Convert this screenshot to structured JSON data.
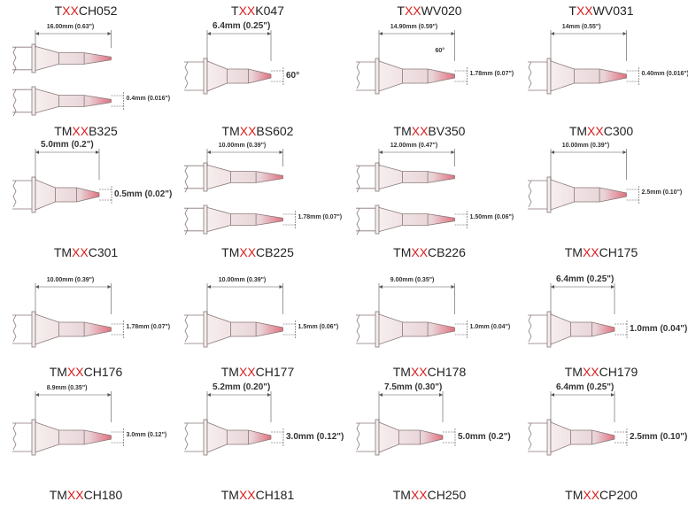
{
  "accent_color": "#d81e1e",
  "tip_color": "#e0707f",
  "tips": [
    {
      "prefix": "T",
      "xx": "XX",
      "suffix": "CH052",
      "length": "16.00mm (0.63\")",
      "width": "0.4mm (0.016\")"
    },
    {
      "prefix": "T",
      "xx": "XX",
      "suffix": "K047",
      "length": "6.4mm (0.25\")",
      "width": "60°"
    },
    {
      "prefix": "T",
      "xx": "XX",
      "suffix": "WV020",
      "length": "14.90mm (0.59\")",
      "angle": "60°",
      "width": "1.78mm (0.07\")"
    },
    {
      "prefix": "T",
      "xx": "XX",
      "suffix": "WV031",
      "length": "14mm (0.55\")",
      "width": "0.40mm (0.016\")"
    },
    {
      "prefix": "TM",
      "xx": "XX",
      "suffix": "B325",
      "length": "5.0mm (0.2\")",
      "width": "0.5mm (0.02\")"
    },
    {
      "prefix": "TM",
      "xx": "XX",
      "suffix": "BS602",
      "length": "10.00mm (0.39\")",
      "width": "1.78mm (0.07\")"
    },
    {
      "prefix": "TM",
      "xx": "XX",
      "suffix": "BV350",
      "length": "12.00mm (0.47\")",
      "width": "1.50mm (0.06\")"
    },
    {
      "prefix": "TM",
      "xx": "XX",
      "suffix": "C300",
      "length": "10.00mm (0.39\")",
      "width": "2.5mm (0.10\")"
    },
    {
      "prefix": "TM",
      "xx": "XX",
      "suffix": "C301",
      "length": "10.00mm (0.39\")",
      "width": "1.78mm (0.07\")"
    },
    {
      "prefix": "TM",
      "xx": "XX",
      "suffix": "CB225",
      "length": "10.00mm (0.39\")",
      "width": "1.5mm (0.06\")"
    },
    {
      "prefix": "TM",
      "xx": "XX",
      "suffix": "CB226",
      "length": "9.00mm (0.35\")",
      "width": "1.0mm (0.04\")"
    },
    {
      "prefix": "TM",
      "xx": "XX",
      "suffix": "CH175",
      "length": "6.4mm (0.25\")",
      "width": "1.0mm (0.04\")"
    },
    {
      "prefix": "TM",
      "xx": "XX",
      "suffix": "CH176",
      "length": "8.9mm (0.35\")",
      "width": "3.0mm (0.12\")"
    },
    {
      "prefix": "TM",
      "xx": "XX",
      "suffix": "CH177",
      "length": "5.2mm (0.20\")",
      "width": "3.0mm (0.12\")"
    },
    {
      "prefix": "TM",
      "xx": "XX",
      "suffix": "CH178",
      "length": "7.5mm (0.30\")",
      "width": "5.0mm (0.2\")"
    },
    {
      "prefix": "TM",
      "xx": "XX",
      "suffix": "CH179",
      "length": "6.4mm (0.25\")",
      "width": "2.5mm (0.10\")"
    }
  ],
  "extra_titles": [
    {
      "prefix": "TM",
      "xx": "XX",
      "suffix": "CH180"
    },
    {
      "prefix": "TM",
      "xx": "XX",
      "suffix": "CH181"
    },
    {
      "prefix": "TM",
      "xx": "XX",
      "suffix": "CH250"
    },
    {
      "prefix": "TM",
      "xx": "XX",
      "suffix": "CP200"
    }
  ]
}
